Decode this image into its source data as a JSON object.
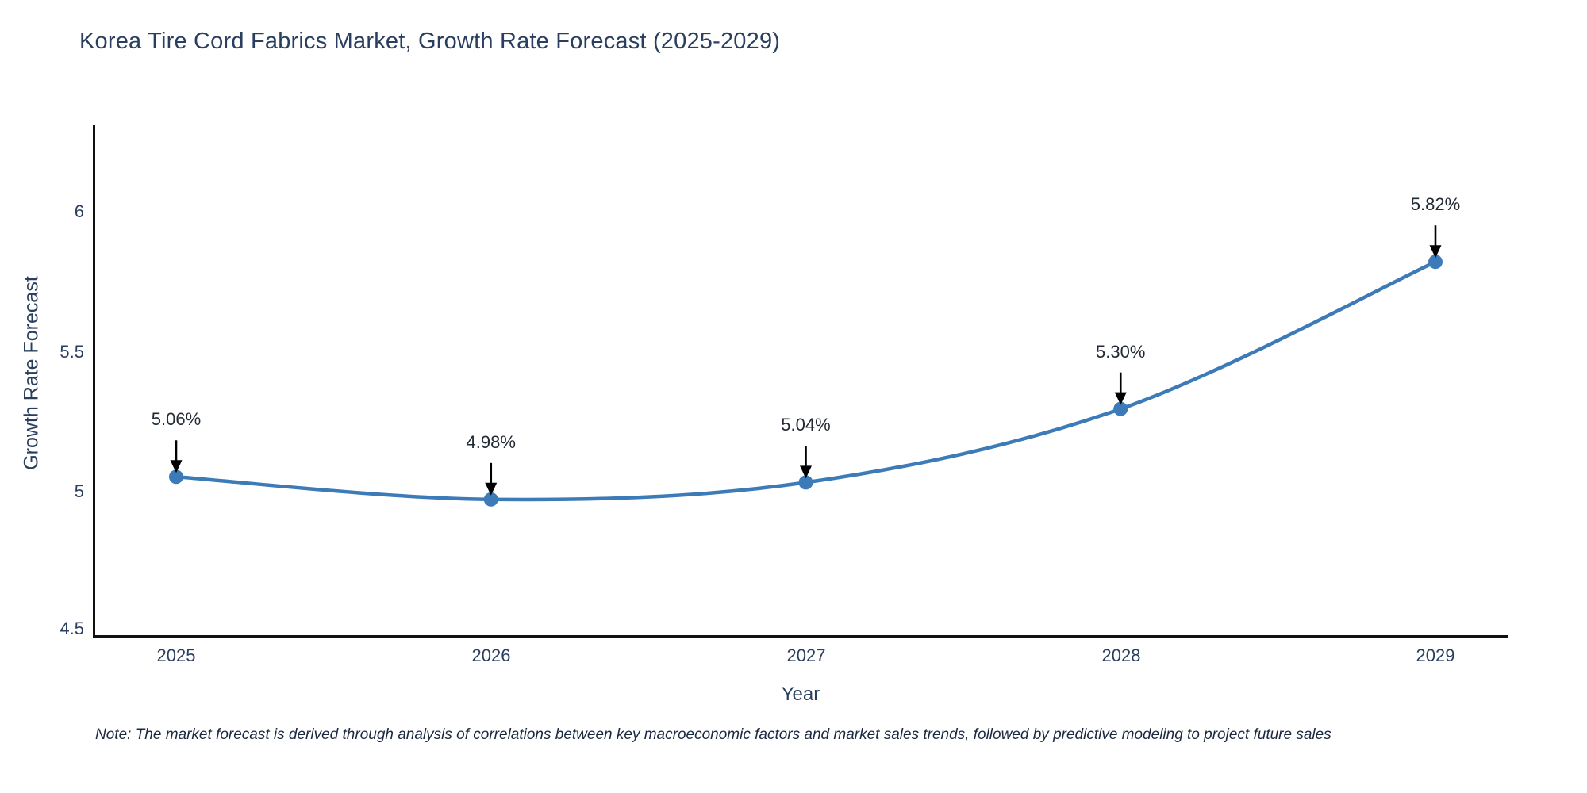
{
  "title": "Korea Tire Cord Fabrics Market, Growth Rate Forecast (2025-2029)",
  "note": "Note: The market forecast is derived through analysis of correlations between key macroeconomic factors and market sales trends, followed by predictive modeling to project future sales",
  "chart_data": {
    "type": "line",
    "title": "Korea Tire Cord Fabrics Market, Growth Rate Forecast (2025-2029)",
    "xlabel": "Year",
    "ylabel": "Growth Rate Forecast",
    "x": [
      2025,
      2026,
      2027,
      2028,
      2029
    ],
    "values": [
      5.06,
      4.98,
      5.04,
      5.3,
      5.82
    ],
    "point_labels": [
      "5.06%",
      "4.98%",
      "5.04%",
      "5.30%",
      "5.82%"
    ],
    "xticks": [
      "2025",
      "2026",
      "2027",
      "2028",
      "2029"
    ],
    "yticks": [
      "6",
      "5.5",
      "5",
      "4.5"
    ],
    "ylim": [
      4.5,
      6.3
    ],
    "xlim": [
      2024.74,
      2029.23
    ],
    "grid": false,
    "legend": "none",
    "line_shape": "spline",
    "line_color": "#3c7ab8",
    "marker_color": "#3c7ab8",
    "arrow_color": "#000000",
    "axis_line_color": "#111111",
    "text_color": "#2a3f5f",
    "background": "#ffffff"
  }
}
